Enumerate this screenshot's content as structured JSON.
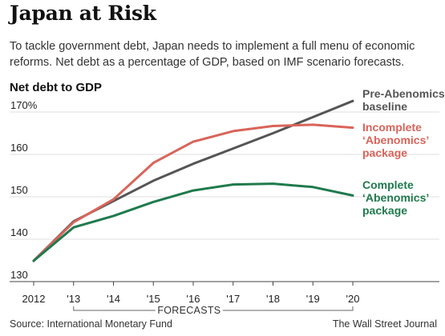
{
  "title": "Japan at Risk",
  "subtitle_lines": [
    "To tackle government debt, Japan needs to implement a full menu of economic",
    "reforms. Net debt as a percentage of GDP, based on IMF scenario forecasts."
  ],
  "footer": {
    "source": "Source: International Monetary Fund",
    "publisher": "The Wall Street Journal"
  },
  "chart_data": {
    "type": "line",
    "ylabel": "Net debt to GDP",
    "x": [
      2012,
      2013,
      2014,
      2015,
      2016,
      2017,
      2018,
      2019,
      2020
    ],
    "x_tick_labels": [
      "2012",
      "'13",
      "'14",
      "'15",
      "'16",
      "'17",
      "'18",
      "'19",
      "'20"
    ],
    "y_ticks": [
      130,
      140,
      150,
      160,
      170
    ],
    "y_tick_labels": [
      "130",
      "140",
      "150",
      "160",
      "170%"
    ],
    "ylim": [
      130,
      173
    ],
    "grid": true,
    "forecast_label": "FORECASTS",
    "forecast_range": [
      2013,
      2020
    ],
    "series": [
      {
        "name": "Pre-Abenomics baseline",
        "label_lines": [
          "Pre-Abenomics",
          "baseline"
        ],
        "color": "#555555",
        "values": [
          134.9,
          144.2,
          149.0,
          153.8,
          157.8,
          161.4,
          165.0,
          168.8,
          172.6
        ]
      },
      {
        "name": "Incomplete 'Abenomics' package",
        "label_lines": [
          "Incomplete",
          "‘Abenomics’",
          "package"
        ],
        "color": "#d9645a",
        "values": [
          134.9,
          144.0,
          149.4,
          158.0,
          163.0,
          165.5,
          166.7,
          167.0,
          166.3
        ]
      },
      {
        "name": "Complete 'Abenomics' package",
        "label_lines": [
          "Complete",
          "‘Abenomics’",
          "package"
        ],
        "color": "#1f7a4d",
        "values": [
          134.9,
          142.8,
          145.5,
          148.8,
          151.5,
          152.9,
          153.1,
          152.3,
          150.3
        ]
      }
    ]
  }
}
